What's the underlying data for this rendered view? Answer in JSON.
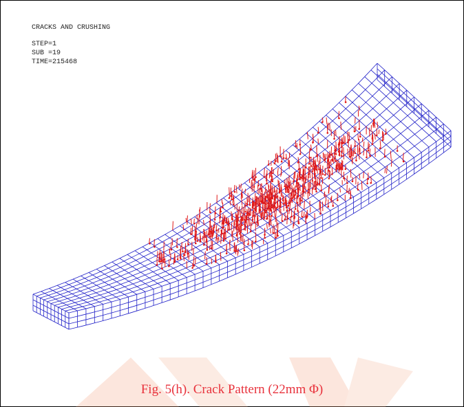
{
  "figure": {
    "header": {
      "title": "CRACKS AND CRUSHING",
      "lines": [
        "STEP=1",
        "SUB =19",
        "TIME=215468"
      ]
    },
    "caption": "Fig. 5(h). Crack Pattern (22mm Φ)"
  }
}
